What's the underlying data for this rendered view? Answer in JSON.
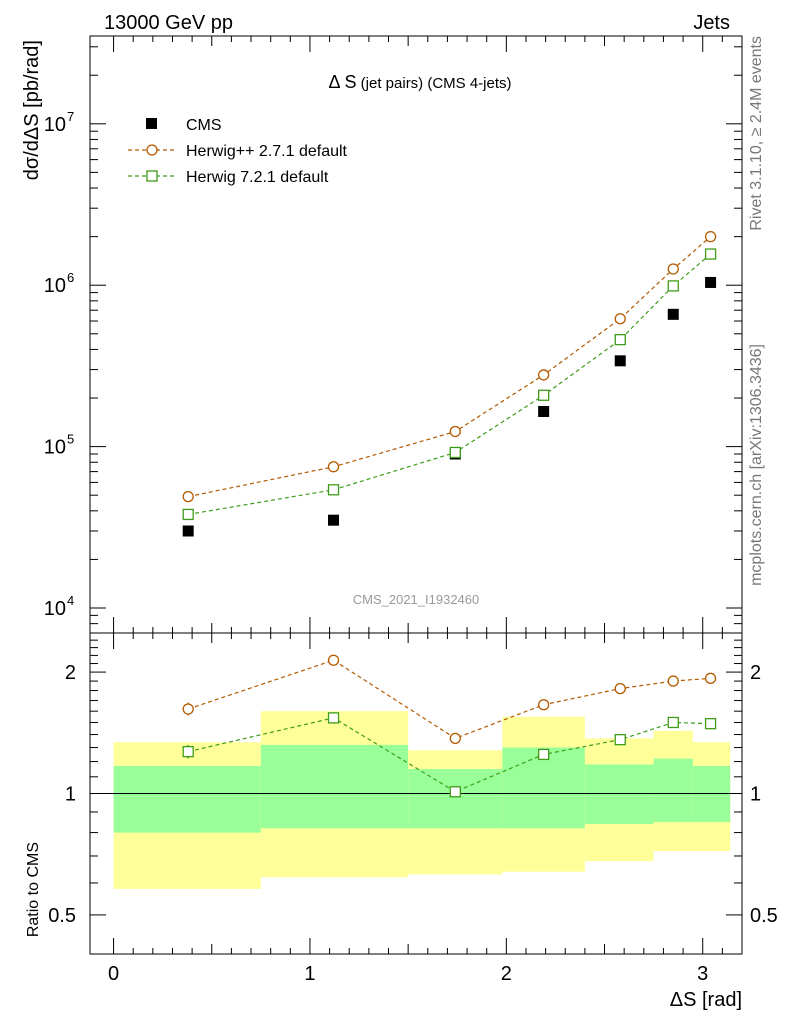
{
  "header": {
    "left": "13000 GeV pp",
    "right": "Jets"
  },
  "side": {
    "rivet": "Rivet 3.1.10, ≥ 2.4M events",
    "mcplots": "mcplots.cern.ch [arXiv:1306.3436]"
  },
  "watermark": "CMS_2021_I1932460",
  "colors": {
    "herwigpp": "#b35a00",
    "herwig7": "#3f9c1a",
    "cms": "#000000",
    "band_inner": "#99ff99",
    "band_outer": "#ffff99"
  },
  "chart_data": [
    {
      "type": "line",
      "title": "Δ S (jet pairs) (CMS 4-jets)",
      "ylabel": "dσ/dΔS [pb/rad]",
      "yscale": "log",
      "ylim": [
        7000,
        35000000
      ],
      "xlim": [
        -0.12,
        3.2
      ],
      "ytick_labels": [
        "10^4",
        "10^5",
        "10^6",
        "10^7"
      ],
      "legend": [
        "CMS",
        "Herwig++ 2.7.1 default",
        "Herwig 7.2.1 default"
      ],
      "x": [
        0.38,
        1.12,
        1.74,
        2.19,
        2.58,
        2.85,
        3.04
      ],
      "series": [
        {
          "name": "CMS",
          "values": [
            30000,
            35000,
            90000,
            165000,
            340000,
            660000,
            1040000
          ]
        },
        {
          "name": "Herwig++ 2.7.1 default",
          "values": [
            49000,
            75000,
            124000,
            278000,
            620000,
            1260000,
            2000000
          ]
        },
        {
          "name": "Herwig 7.2.1 default",
          "values": [
            38000,
            54000,
            92000,
            208000,
            460000,
            990000,
            1560000
          ]
        }
      ]
    },
    {
      "type": "line",
      "ylabel": "Ratio to CMS",
      "xlabel": "ΔS [rad]",
      "yscale": "log",
      "ylim": [
        0.4,
        2.5
      ],
      "xlim": [
        -0.12,
        3.2
      ],
      "ytick_labels": [
        "0.5",
        "1",
        "2"
      ],
      "xtick_labels": [
        "0",
        "1",
        "2",
        "3"
      ],
      "x": [
        0.38,
        1.12,
        1.74,
        2.19,
        2.58,
        2.85,
        3.04
      ],
      "bins": [
        {
          "lo": 0.0,
          "hi": 0.75,
          "inner": [
            0.8,
            1.17
          ],
          "outer": [
            0.58,
            1.34
          ]
        },
        {
          "lo": 0.75,
          "hi": 1.5,
          "inner": [
            0.82,
            1.32
          ],
          "outer": [
            0.62,
            1.6
          ]
        },
        {
          "lo": 1.5,
          "hi": 1.98,
          "inner": [
            0.82,
            1.15
          ],
          "outer": [
            0.63,
            1.28
          ]
        },
        {
          "lo": 1.98,
          "hi": 2.4,
          "inner": [
            0.82,
            1.3
          ],
          "outer": [
            0.64,
            1.55
          ]
        },
        {
          "lo": 2.4,
          "hi": 2.75,
          "inner": [
            0.84,
            1.18
          ],
          "outer": [
            0.68,
            1.37
          ]
        },
        {
          "lo": 2.75,
          "hi": 2.95,
          "inner": [
            0.85,
            1.22
          ],
          "outer": [
            0.72,
            1.43
          ]
        },
        {
          "lo": 2.95,
          "hi": 3.14,
          "inner": [
            0.85,
            1.17
          ],
          "outer": [
            0.72,
            1.34
          ]
        }
      ],
      "series": [
        {
          "name": "Herwig++ 2.7.1 default",
          "values": [
            1.62,
            2.14,
            1.37,
            1.66,
            1.82,
            1.9,
            1.93
          ],
          "err": [
            0.06,
            0.06,
            0.04,
            0.0,
            0.0,
            0.0,
            0.0
          ]
        },
        {
          "name": "Herwig 7.2.1 default",
          "values": [
            1.27,
            1.54,
            1.01,
            1.25,
            1.36,
            1.5,
            1.49
          ],
          "err": [
            0.05,
            0.05,
            0.03,
            0.0,
            0.0,
            0.0,
            0.0
          ]
        }
      ]
    }
  ]
}
